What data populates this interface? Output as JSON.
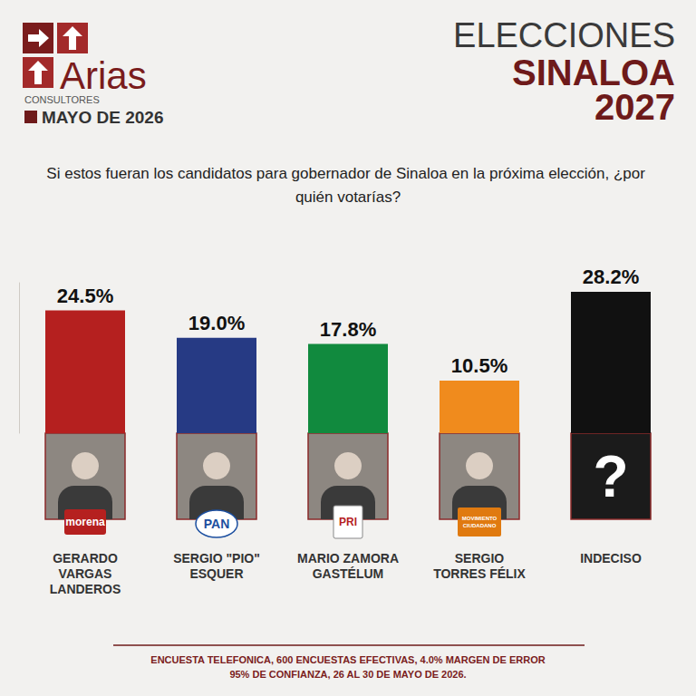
{
  "header": {
    "brand": "Arias",
    "brand_subtitle": "CONSULTORES",
    "date": "MAYO DE 2026",
    "title_lines": [
      "ELECCIONES",
      "SINALOA",
      "2027"
    ]
  },
  "chart_data": {
    "type": "bar",
    "title": "Si estos fueran los candidatos para gobernador de Sinaloa en la próxima elección, ¿por quién votarías?",
    "categories": [
      "GERARDO VARGAS LANDEROS",
      "SERGIO \"PIO\" ESQUER",
      "MARIO ZAMORA GASTÉLUM",
      "SERGIO TORRES FÉLIX",
      "INDECISO"
    ],
    "values": [
      24.5,
      19.0,
      17.8,
      10.5,
      28.2
    ],
    "value_labels": [
      "24.5%",
      "19.0%",
      "17.8%",
      "10.5%",
      "28.2%"
    ],
    "colors": [
      "#b5201f",
      "#263a84",
      "#118a3e",
      "#f08b1d",
      "#111111"
    ],
    "parties": [
      "morena",
      "PAN",
      "PRI",
      "MOVIMIENTO CIUDADANO",
      "?"
    ],
    "ylim": [
      0,
      30
    ],
    "data_labels": true,
    "tick_labels": false,
    "grid": false
  },
  "footer": [
    "ENCUESTA TELEFONICA, 600 ENCUESTAS EFECTIVAS, 4.0% MARGEN DE ERROR",
    "95% DE CONFIANZA, 26 AL 30 DE MAYO DE 2026."
  ]
}
